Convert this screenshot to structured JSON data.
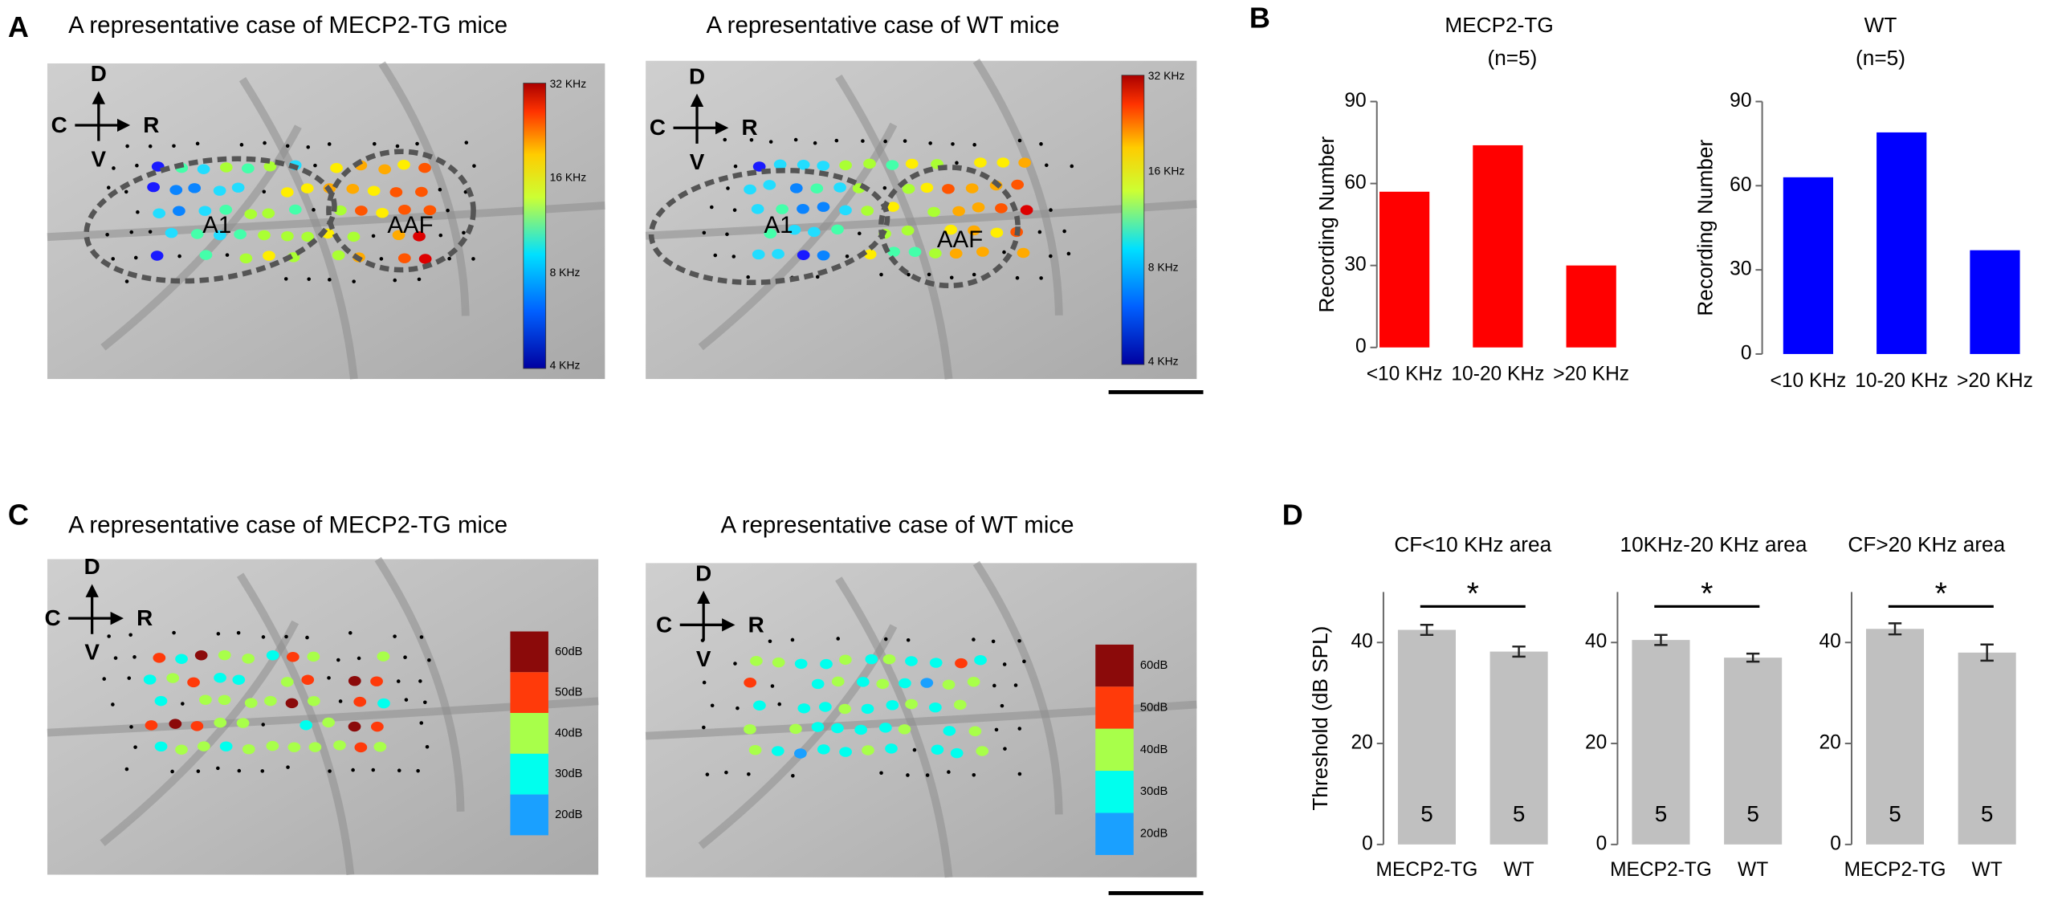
{
  "figure": {
    "panel_labels": [
      "A",
      "B",
      "C",
      "D"
    ],
    "compass": {
      "dorsal": "D",
      "caudal": "C",
      "rostral": "R",
      "ventral": "V"
    },
    "images": [
      {
        "title": "A representative case of MECP2-TG mice",
        "regions": [
          "A1",
          "AAF"
        ]
      },
      {
        "title": "A representative case of WT mice",
        "regions": [
          "A1",
          "AAF"
        ]
      },
      {
        "title": "A representative case of MECP2-TG mice"
      },
      {
        "title": "A representative case of WT mice"
      }
    ],
    "frequency_scale": [
      "32 KHz",
      "16 KHz",
      "8 KHz",
      "4 KHz"
    ],
    "threshold_scale": [
      "60dB",
      "50dB",
      "40dB",
      "30dB",
      "20dB"
    ],
    "threshold_colors": [
      "#8b0a0a",
      "#ff3a0a",
      "#a8ff4a",
      "#00ffee",
      "#1aa0ff"
    ]
  },
  "chart_data": [
    {
      "type": "bar",
      "title": "MECP2-TG",
      "subtitle": "(n=5)",
      "ylabel": "Recording Number",
      "categories": [
        "<10 KHz",
        "10-20 KHz",
        ">20 KHz"
      ],
      "values": [
        57,
        74,
        30
      ],
      "color": "#ff0000",
      "ylim": [
        0,
        90
      ],
      "yticks": [
        0,
        30,
        60,
        90
      ]
    },
    {
      "type": "bar",
      "title": "WT",
      "subtitle": "(n=5)",
      "ylabel": "Recording Number",
      "categories": [
        "<10 KHz",
        "10-20 KHz",
        ">20 KHz"
      ],
      "values": [
        63,
        79,
        37
      ],
      "color": "#0000ff",
      "ylim": [
        0,
        90
      ],
      "yticks": [
        0,
        30,
        60,
        90
      ]
    },
    {
      "type": "bar",
      "title": "CF<10 KHz area",
      "ylabel": "Threshold (dB SPL)",
      "categories": [
        "MECP2-TG",
        "WT"
      ],
      "values": [
        42.5,
        38.2
      ],
      "errors": [
        1,
        1
      ],
      "n": [
        5,
        5
      ],
      "annotation": "*",
      "color": "#c0c0c0",
      "ylim": [
        0,
        50
      ],
      "yticks": [
        0,
        20,
        40
      ]
    },
    {
      "type": "bar",
      "title": "10KHz-20 KHz area",
      "categories": [
        "MECP2-TG",
        "WT"
      ],
      "values": [
        40.5,
        37
      ],
      "errors": [
        1,
        0.8
      ],
      "n": [
        5,
        5
      ],
      "annotation": "*",
      "color": "#c0c0c0",
      "ylim": [
        0,
        50
      ],
      "yticks": [
        0,
        20,
        40
      ]
    },
    {
      "type": "bar",
      "title": "CF>20 KHz area",
      "categories": [
        "MECP2-TG",
        "WT"
      ],
      "values": [
        42.7,
        38
      ],
      "errors": [
        1.1,
        1.6
      ],
      "n": [
        5,
        5
      ],
      "annotation": "*",
      "color": "#c0c0c0",
      "ylim": [
        0,
        50
      ],
      "yticks": [
        0,
        20,
        40
      ]
    }
  ]
}
